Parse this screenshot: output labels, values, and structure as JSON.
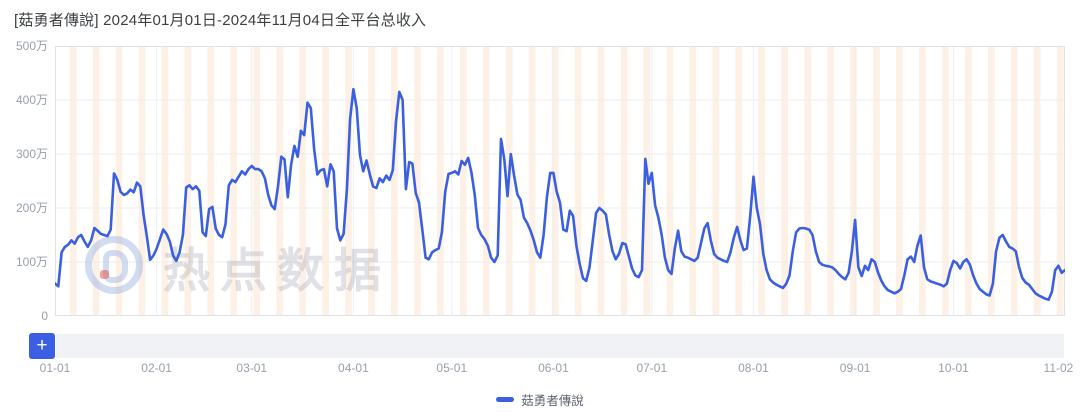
{
  "header": {
    "title": "[菇勇者傳說] 2024年01月01日-2024年11月04日全平台总收入"
  },
  "watermark": {
    "text": "热点数据"
  },
  "toolbar": {
    "add_button_label": "+"
  },
  "legend": {
    "position": "bottom-center",
    "items": [
      {
        "label": "菇勇者傳說",
        "color": "#3A5FE2"
      }
    ]
  },
  "chart_data": {
    "type": "line",
    "title": "[菇勇者傳說] 2024年01月01日-2024年11月04日全平台总收入",
    "series_name": "菇勇者傳說",
    "unit": "万",
    "start_date": "2024-01-01",
    "end_date": "2024-11-04",
    "ylim": [
      0,
      500
    ],
    "grid": true,
    "legend_position": "bottom-center",
    "y_ticks": [
      {
        "label": "0",
        "value": 0
      },
      {
        "label": "100万",
        "value": 100
      },
      {
        "label": "200万",
        "value": 200
      },
      {
        "label": "300万",
        "value": 300
      },
      {
        "label": "400万",
        "value": 400
      },
      {
        "label": "500万",
        "value": 500
      }
    ],
    "x_ticks": [
      {
        "label": "01-01",
        "day": 0
      },
      {
        "label": "02-01",
        "day": 31
      },
      {
        "label": "03-01",
        "day": 60
      },
      {
        "label": "04-01",
        "day": 91
      },
      {
        "label": "05-01",
        "day": 121
      },
      {
        "label": "06-01",
        "day": 152
      },
      {
        "label": "07-01",
        "day": 182
      },
      {
        "label": "08-01",
        "day": 213
      },
      {
        "label": "09-01",
        "day": 244
      },
      {
        "label": "10-01",
        "day": 274
      },
      {
        "label": "11-02",
        "day": 306
      }
    ],
    "weekend_bands": {
      "first_day": 5,
      "period": 7,
      "span": 2
    },
    "colors": {
      "line": "#3A5FE2",
      "weekend_band": "rgba(246,173,105,0.18)",
      "grid": "#ECEEF1",
      "border": "#DEE1E6",
      "axis_label": "#98A0A8",
      "title_text": "#3C4043",
      "slider_track": "#F1F2F5",
      "accent_button": "#3A5FE2"
    },
    "values": [
      60,
      55,
      118,
      128,
      132,
      140,
      134,
      146,
      150,
      138,
      128,
      140,
      163,
      158,
      152,
      150,
      148,
      160,
      264,
      252,
      230,
      224,
      227,
      234,
      229,
      247,
      240,
      188,
      148,
      104,
      112,
      125,
      142,
      160,
      152,
      138,
      112,
      102,
      118,
      150,
      238,
      242,
      235,
      240,
      232,
      155,
      148,
      198,
      202,
      162,
      150,
      146,
      170,
      242,
      252,
      248,
      258,
      268,
      262,
      272,
      278,
      272,
      272,
      268,
      255,
      225,
      205,
      198,
      240,
      295,
      290,
      220,
      280,
      315,
      295,
      343,
      335,
      395,
      385,
      310,
      262,
      270,
      272,
      240,
      281,
      268,
      162,
      140,
      152,
      235,
      365,
      420,
      385,
      298,
      268,
      288,
      262,
      240,
      237,
      255,
      248,
      260,
      252,
      270,
      360,
      415,
      400,
      235,
      285,
      282,
      228,
      210,
      160,
      108,
      105,
      118,
      122,
      125,
      155,
      230,
      263,
      265,
      268,
      262,
      287,
      280,
      293,
      265,
      225,
      163,
      150,
      142,
      130,
      108,
      100,
      112,
      328,
      290,
      222,
      300,
      260,
      225,
      215,
      182,
      172,
      158,
      140,
      118,
      108,
      150,
      220,
      265,
      265,
      230,
      210,
      160,
      157,
      195,
      185,
      130,
      96,
      70,
      65,
      90,
      140,
      191,
      200,
      195,
      188,
      150,
      120,
      105,
      115,
      135,
      133,
      110,
      88,
      75,
      72,
      85,
      291,
      245,
      265,
      205,
      182,
      150,
      108,
      85,
      78,
      125,
      158,
      120,
      110,
      108,
      105,
      102,
      108,
      135,
      162,
      172,
      140,
      115,
      108,
      105,
      102,
      100,
      118,
      145,
      165,
      140,
      122,
      125,
      185,
      258,
      200,
      170,
      115,
      85,
      68,
      62,
      58,
      55,
      52,
      60,
      75,
      120,
      155,
      162,
      163,
      162,
      160,
      150,
      120,
      100,
      95,
      93,
      92,
      90,
      85,
      78,
      72,
      68,
      80,
      120,
      178,
      90,
      74,
      93,
      85,
      105,
      100,
      80,
      65,
      55,
      48,
      45,
      42,
      45,
      50,
      75,
      105,
      110,
      100,
      130,
      149,
      90,
      68,
      64,
      62,
      60,
      58,
      55,
      60,
      85,
      102,
      98,
      88,
      100,
      105,
      95,
      75,
      60,
      50,
      45,
      40,
      38,
      60,
      120,
      145,
      150,
      138,
      128,
      125,
      120,
      90,
      70,
      62,
      58,
      50,
      42,
      38,
      35,
      32,
      30,
      45,
      85,
      93,
      80,
      85
    ]
  }
}
